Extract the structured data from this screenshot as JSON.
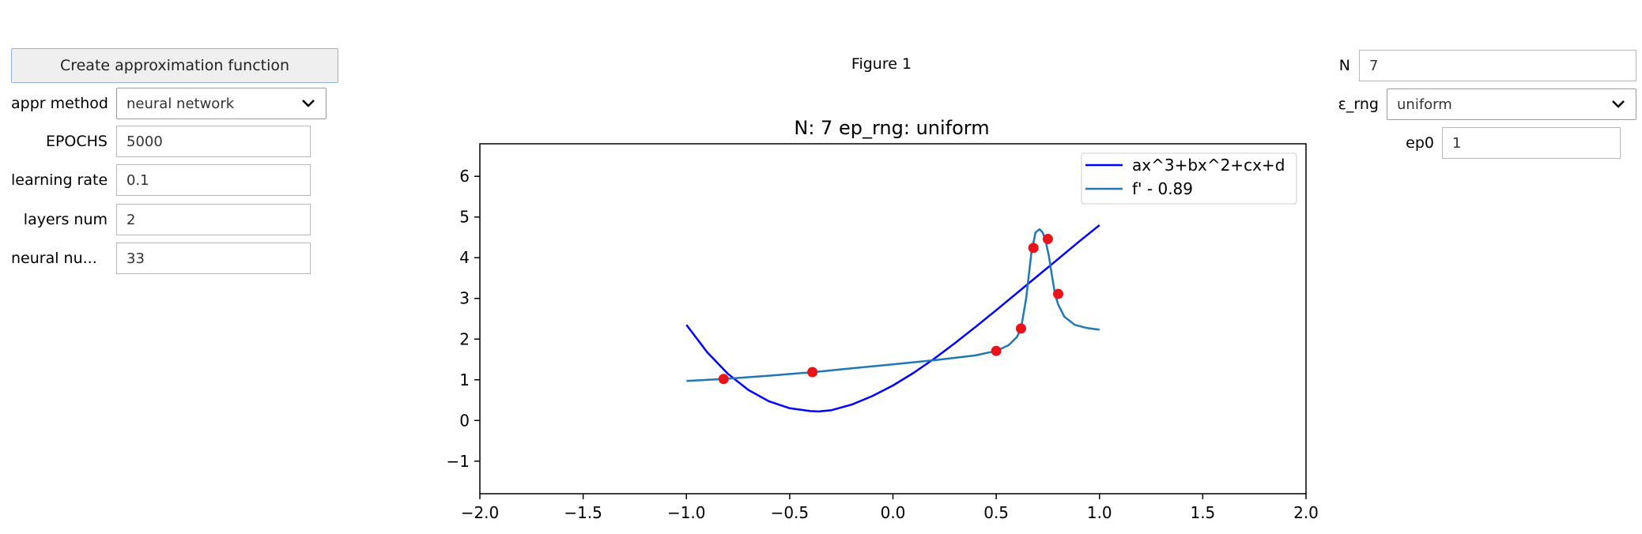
{
  "left_panel": {
    "create_button": "Create approximation function",
    "appr_method": {
      "label": "appr method",
      "value": "neural network"
    },
    "epochs": {
      "label": "EPOCHS",
      "value": "5000"
    },
    "learning_rate": {
      "label": "learning rate",
      "value": "0.1"
    },
    "layers_num": {
      "label": "layers num",
      "value": "2"
    },
    "neural_num": {
      "label": "neural nu...",
      "value": "33"
    }
  },
  "right_panel": {
    "n": {
      "label": "N",
      "value": "7"
    },
    "eps_rng": {
      "label": "ε_rng",
      "value": "uniform"
    },
    "ep0": {
      "label": "ep0",
      "value": "1"
    }
  },
  "figure": {
    "window_title": "Figure 1"
  },
  "chart_data": {
    "type": "line",
    "title": "N: 7 ep_rng: uniform",
    "xlabel": "",
    "ylabel": "",
    "xlim": [
      -2.0,
      2.0
    ],
    "ylim": [
      -1.8,
      6.8
    ],
    "x_ticks": [
      -2.0,
      -1.5,
      -1.0,
      -0.5,
      0.0,
      0.5,
      1.0,
      1.5,
      2.0
    ],
    "x_tick_labels": [
      "−2.0",
      "−1.5",
      "−1.0",
      "−0.5",
      "0.0",
      "0.5",
      "1.0",
      "1.5",
      "2.0"
    ],
    "y_ticks": [
      -1,
      0,
      1,
      2,
      3,
      4,
      5,
      6
    ],
    "y_tick_labels": [
      "−1",
      "0",
      "1",
      "2",
      "3",
      "4",
      "5",
      "6"
    ],
    "grid": false,
    "legend": "top-right",
    "series": [
      {
        "name": "ax^3+bx^2+cx+d",
        "color": "#0000ff",
        "x": [
          -1.0,
          -0.9,
          -0.8,
          -0.7,
          -0.6,
          -0.5,
          -0.4,
          -0.36,
          -0.3,
          -0.2,
          -0.1,
          0.0,
          0.1,
          0.2,
          0.3,
          0.4,
          0.5,
          0.6,
          0.7,
          0.8,
          0.9,
          1.0
        ],
        "y": [
          2.35,
          1.68,
          1.15,
          0.75,
          0.47,
          0.3,
          0.23,
          0.22,
          0.25,
          0.39,
          0.6,
          0.86,
          1.17,
          1.52,
          1.9,
          2.3,
          2.71,
          3.13,
          3.55,
          3.97,
          4.39,
          4.8
        ]
      },
      {
        "name": "f' - 0.89",
        "color": "#1f77b4",
        "x": [
          -1.0,
          -0.82,
          -0.6,
          -0.38,
          -0.2,
          0.0,
          0.2,
          0.4,
          0.5,
          0.56,
          0.6,
          0.62,
          0.645,
          0.67,
          0.69,
          0.71,
          0.725,
          0.74,
          0.755,
          0.77,
          0.785,
          0.8,
          0.83,
          0.88,
          0.94,
          1.0
        ],
        "y": [
          0.97,
          1.02,
          1.1,
          1.19,
          1.28,
          1.38,
          1.48,
          1.6,
          1.71,
          1.85,
          2.05,
          2.26,
          3.0,
          4.1,
          4.62,
          4.7,
          4.62,
          4.4,
          4.05,
          3.55,
          3.1,
          2.85,
          2.55,
          2.35,
          2.27,
          2.23
        ]
      }
    ],
    "points": {
      "color": "#e8141a",
      "x": [
        -0.82,
        -0.39,
        0.5,
        0.62,
        0.68,
        0.75,
        0.8
      ],
      "y": [
        1.02,
        1.19,
        1.71,
        2.26,
        4.24,
        4.46,
        3.11
      ]
    }
  }
}
